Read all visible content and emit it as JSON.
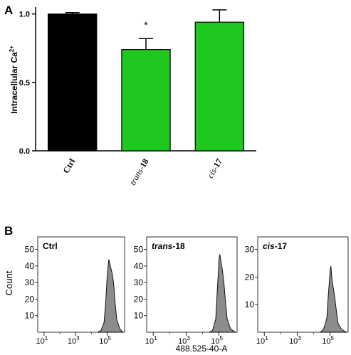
{
  "chart_data": [
    {
      "type": "bar",
      "panel_label": "A",
      "ylabel": "Intracellular Ca",
      "ylabel_sup": "2+",
      "ylim": [
        0,
        1.05
      ],
      "yticks": [
        "0.0",
        "0.5",
        "1.0"
      ],
      "categories": [
        {
          "prefix": "",
          "suffix": "Ctrl"
        },
        {
          "prefix": "trans-",
          "suffix": "18"
        },
        {
          "prefix": "cis-",
          "suffix": "17"
        }
      ],
      "values": [
        1.0,
        0.74,
        0.94
      ],
      "errors": [
        0.01,
        0.08,
        0.09
      ],
      "colors": [
        "#000000",
        "#1ec81e",
        "#1ec81e"
      ],
      "significance": [
        "",
        "*",
        ""
      ]
    },
    {
      "type": "area",
      "panel_label": "B",
      "ylabel": "Count",
      "xlabel": "488.525-40-A",
      "xticks": [
        "10",
        "10",
        "10"
      ],
      "xtick_exponents": [
        "1",
        "3",
        "5"
      ],
      "fill_color": "#8c8c8c",
      "panels": [
        {
          "title_prefix": "",
          "title_suffix": "Ctrl",
          "yticks": [
            "10",
            "20",
            "30",
            "40",
            "50"
          ],
          "ymax": 55,
          "x": [
            4.4,
            4.6,
            4.8,
            4.9,
            5.0,
            5.1,
            5.2,
            5.3,
            5.4,
            5.5,
            5.6,
            5.8,
            6.0
          ],
          "y": [
            0,
            1,
            6,
            18,
            34,
            44,
            40,
            36,
            30,
            18,
            8,
            2,
            0
          ]
        },
        {
          "title_prefix": "trans-",
          "title_suffix": "18",
          "yticks": [
            "10",
            "20",
            "30",
            "40",
            "50"
          ],
          "ymax": 55,
          "x": [
            4.4,
            4.6,
            4.8,
            4.9,
            5.0,
            5.05,
            5.1,
            5.2,
            5.3,
            5.4,
            5.5,
            5.7,
            6.0
          ],
          "y": [
            0,
            1,
            8,
            26,
            44,
            47,
            44,
            38,
            30,
            18,
            8,
            2,
            0
          ]
        },
        {
          "title_prefix": "cis-",
          "title_suffix": "17",
          "yticks": [
            "10",
            "20",
            "30"
          ],
          "ymax": 33,
          "x": [
            4.4,
            4.6,
            4.8,
            4.9,
            5.0,
            5.05,
            5.1,
            5.2,
            5.3,
            5.4,
            5.5,
            5.7,
            6.0
          ],
          "y": [
            0,
            1,
            5,
            14,
            22,
            24,
            20,
            16,
            12,
            7,
            3,
            1,
            0
          ]
        }
      ]
    }
  ]
}
